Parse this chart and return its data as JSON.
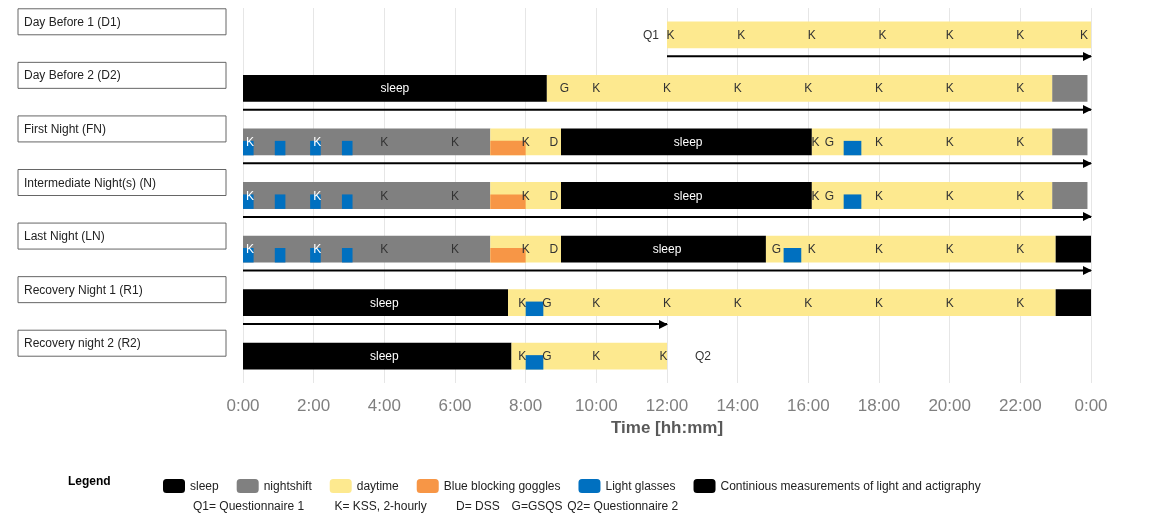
{
  "chart_data": {
    "type": "bar",
    "orientation": "horizontal",
    "xlabel": "Time [hh:mm]",
    "legend_title": "Legend",
    "legend": "bottom",
    "grid": "x",
    "categories": [
      "Day Before 1 (D1)",
      "Day Before 2 (D2)",
      "First Night (FN)",
      "Intermediate Night(s) (N)",
      "Last Night (LN)",
      "Recovery Night 1 (R1)",
      "Recovery night 2 (R2)"
    ],
    "xlim": [
      0,
      24
    ],
    "xticks": [
      {
        "value": 0,
        "label": "0:00"
      },
      {
        "value": 2,
        "label": "2:00"
      },
      {
        "value": 4,
        "label": "4:00"
      },
      {
        "value": 6,
        "label": "6:00"
      },
      {
        "value": 8,
        "label": "8:00"
      },
      {
        "value": 10,
        "label": "10:00"
      },
      {
        "value": 12,
        "label": "12:00"
      },
      {
        "value": 14,
        "label": "14:00"
      },
      {
        "value": 16,
        "label": "16:00"
      },
      {
        "value": 18,
        "label": "18:00"
      },
      {
        "value": 20,
        "label": "20:00"
      },
      {
        "value": 22,
        "label": "22:00"
      },
      {
        "value": 24,
        "label": "0:00"
      }
    ],
    "series": [
      {
        "name": "sleep",
        "color": "#000000",
        "base": [
          null,
          0,
          9,
          9,
          9,
          0,
          0
        ],
        "values": [
          null,
          8.6,
          7.1,
          7.1,
          5.8,
          7.5,
          7.6
        ]
      },
      {
        "color": "#808080",
        "base": [
          null,
          null,
          0,
          0,
          0,
          null,
          null
        ],
        "values": [
          null,
          null,
          7,
          7,
          7,
          null,
          null
        ]
      },
      {
        "name": "nightshift",
        "color": "#808080",
        "base": [
          null,
          22.9,
          22.9,
          22.9,
          null,
          null,
          null
        ],
        "values": [
          null,
          1,
          1,
          1,
          null,
          null,
          null
        ]
      },
      {
        "name": "daytime",
        "color": "#fde98f",
        "base": [
          12,
          8.6,
          7,
          7,
          7,
          7.5,
          7.6
        ],
        "values": [
          12,
          14.3,
          2,
          2,
          2,
          15.5,
          4.4
        ]
      },
      {
        "color": "#fde98f",
        "base": [
          null,
          null,
          16.1,
          16.1,
          14.8,
          null,
          null
        ],
        "values": [
          null,
          null,
          6.8,
          6.8,
          8.2,
          null,
          null
        ]
      },
      {
        "color": "#000000",
        "base": [
          null,
          null,
          null,
          null,
          23,
          23,
          null
        ],
        "values": [
          null,
          null,
          null,
          null,
          1,
          1,
          null
        ]
      },
      {
        "name": "Blue blocking goggles",
        "color": "#f79646",
        "base": [
          null,
          null,
          7,
          7,
          7,
          null,
          null
        ],
        "values": [
          null,
          null,
          1,
          1,
          1,
          null,
          null
        ]
      },
      {
        "name": "Light glasses",
        "color": "#0070c0",
        "base": [
          null,
          null,
          0,
          0,
          0,
          8,
          8
        ],
        "values": [
          null,
          null,
          0.3,
          0.3,
          0.3,
          0.5,
          0.5
        ]
      },
      {
        "color": "#0070c0",
        "base": [
          null,
          null,
          0.9,
          0.9,
          0.9,
          null,
          null
        ],
        "values": [
          null,
          null,
          0.3,
          0.3,
          0.3,
          null,
          null
        ]
      },
      {
        "color": "#0070c0",
        "base": [
          null,
          null,
          1.9,
          1.9,
          1.9,
          null,
          null
        ],
        "values": [
          null,
          null,
          0.3,
          0.3,
          0.3,
          null,
          null
        ]
      },
      {
        "color": "#0070c0",
        "base": [
          null,
          null,
          2.8,
          2.8,
          2.8,
          null,
          null
        ],
        "values": [
          null,
          null,
          0.3,
          0.3,
          0.3,
          null,
          null
        ]
      },
      {
        "color": "#0070c0",
        "base": [
          null,
          null,
          17,
          17,
          15.3,
          null,
          null
        ],
        "values": [
          null,
          null,
          0.5,
          0.5,
          0.5,
          null,
          null
        ]
      },
      {
        "name": "Continious measurements of light and actigraphy",
        "marker": "triangle",
        "color": "#000000",
        "base": [
          12,
          0,
          0,
          0,
          0,
          0,
          null
        ],
        "values": [
          12,
          24,
          24,
          24,
          24,
          12,
          null
        ]
      }
    ],
    "annotations": [
      {
        "text": "Q1",
        "x": 12,
        "y": "Day Before 1 (D1)"
      },
      {
        "text": "K",
        "x": 12.1,
        "y": "Day Before 1 (D1)"
      },
      {
        "text": "K",
        "x": 14.1,
        "y": "Day Before 1 (D1)"
      },
      {
        "text": "K",
        "x": 16.1,
        "y": "Day Before 1 (D1)"
      },
      {
        "text": "K",
        "x": 18.1,
        "y": "Day Before 1 (D1)"
      },
      {
        "text": "K",
        "x": 20,
        "y": "Day Before 1 (D1)"
      },
      {
        "text": "K",
        "x": 22,
        "y": "Day Before 1 (D1)"
      },
      {
        "text": "K",
        "x": 23.8,
        "y": "Day Before 1 (D1)"
      },
      {
        "text": "sleep",
        "x": 4.3,
        "y": "Day Before 2 (D2)"
      },
      {
        "text": "G",
        "x": 9.1,
        "y": "Day Before 2 (D2)"
      },
      {
        "text": "K",
        "x": 10,
        "y": "Day Before 2 (D2)"
      },
      {
        "text": "K",
        "x": 12,
        "y": "Day Before 2 (D2)"
      },
      {
        "text": "K",
        "x": 14,
        "y": "Day Before 2 (D2)"
      },
      {
        "text": "K",
        "x": 16,
        "y": "Day Before 2 (D2)"
      },
      {
        "text": "K",
        "x": 18,
        "y": "Day Before 2 (D2)"
      },
      {
        "text": "K",
        "x": 20,
        "y": "Day Before 2 (D2)"
      },
      {
        "text": "K",
        "x": 22,
        "y": "Day Before 2 (D2)"
      },
      {
        "text": "K",
        "x": 0.2,
        "y": "First Night (FN)"
      },
      {
        "text": "K",
        "x": 2.1,
        "y": "First Night (FN)"
      },
      {
        "text": "K",
        "x": 4,
        "y": "First Night (FN)"
      },
      {
        "text": "K",
        "x": 6,
        "y": "First Night (FN)"
      },
      {
        "text": "K",
        "x": 8,
        "y": "First Night (FN)"
      },
      {
        "text": "D",
        "x": 8.8,
        "y": "First Night (FN)"
      },
      {
        "text": "sleep",
        "x": 12.6,
        "y": "First Night (FN)"
      },
      {
        "text": "K",
        "x": 16.2,
        "y": "First Night (FN)"
      },
      {
        "text": "G",
        "x": 16.6,
        "y": "First Night (FN)"
      },
      {
        "text": "K",
        "x": 18,
        "y": "First Night (FN)"
      },
      {
        "text": "K",
        "x": 20,
        "y": "First Night (FN)"
      },
      {
        "text": "K",
        "x": 22,
        "y": "First Night (FN)"
      },
      {
        "text": "K",
        "x": 0.2,
        "y": "Intermediate Night(s) (N)"
      },
      {
        "text": "K",
        "x": 2.1,
        "y": "Intermediate Night(s) (N)"
      },
      {
        "text": "K",
        "x": 4,
        "y": "Intermediate Night(s) (N)"
      },
      {
        "text": "K",
        "x": 6,
        "y": "Intermediate Night(s) (N)"
      },
      {
        "text": "K",
        "x": 8,
        "y": "Intermediate Night(s) (N)"
      },
      {
        "text": "D",
        "x": 8.8,
        "y": "Intermediate Night(s) (N)"
      },
      {
        "text": "sleep",
        "x": 12.6,
        "y": "Intermediate Night(s) (N)"
      },
      {
        "text": "K",
        "x": 16.2,
        "y": "Intermediate Night(s) (N)"
      },
      {
        "text": "G",
        "x": 16.6,
        "y": "Intermediate Night(s) (N)"
      },
      {
        "text": "K",
        "x": 18,
        "y": "Intermediate Night(s) (N)"
      },
      {
        "text": "K",
        "x": 20,
        "y": "Intermediate Night(s) (N)"
      },
      {
        "text": "K",
        "x": 22,
        "y": "Intermediate Night(s) (N)"
      },
      {
        "text": "K",
        "x": 0.2,
        "y": "Last Night (LN)"
      },
      {
        "text": "K",
        "x": 2.1,
        "y": "Last Night (LN)"
      },
      {
        "text": "K",
        "x": 4,
        "y": "Last Night (LN)"
      },
      {
        "text": "K",
        "x": 6,
        "y": "Last Night (LN)"
      },
      {
        "text": "K",
        "x": 8,
        "y": "Last Night (LN)"
      },
      {
        "text": "D",
        "x": 8.8,
        "y": "Last Night (LN)"
      },
      {
        "text": "sleep",
        "x": 12,
        "y": "Last Night (LN)"
      },
      {
        "text": "G",
        "x": 15.1,
        "y": "Last Night (LN)"
      },
      {
        "text": "K",
        "x": 16.1,
        "y": "Last Night (LN)"
      },
      {
        "text": "K",
        "x": 18,
        "y": "Last Night (LN)"
      },
      {
        "text": "K",
        "x": 20,
        "y": "Last Night (LN)"
      },
      {
        "text": "K",
        "x": 22,
        "y": "Last Night (LN)"
      },
      {
        "text": "sleep",
        "x": 4,
        "y": "Recovery Night 1 (R1)"
      },
      {
        "text": "K",
        "x": 7.9,
        "y": "Recovery Night 1 (R1)"
      },
      {
        "text": "G",
        "x": 8.6,
        "y": "Recovery Night 1 (R1)"
      },
      {
        "text": "K",
        "x": 10,
        "y": "Recovery Night 1 (R1)"
      },
      {
        "text": "K",
        "x": 12,
        "y": "Recovery Night 1 (R1)"
      },
      {
        "text": "K",
        "x": 14,
        "y": "Recovery Night 1 (R1)"
      },
      {
        "text": "K",
        "x": 16,
        "y": "Recovery Night 1 (R1)"
      },
      {
        "text": "K",
        "x": 18,
        "y": "Recovery Night 1 (R1)"
      },
      {
        "text": "K",
        "x": 20,
        "y": "Recovery Night 1 (R1)"
      },
      {
        "text": "K",
        "x": 22,
        "y": "Recovery Night 1 (R1)"
      },
      {
        "text": "sleep",
        "x": 4,
        "y": "Recovery night 2 (R2)"
      },
      {
        "text": "K",
        "x": 7.9,
        "y": "Recovery night 2 (R2)"
      },
      {
        "text": "G",
        "x": 8.6,
        "y": "Recovery night 2 (R2)"
      },
      {
        "text": "K",
        "x": 10,
        "y": "Recovery night 2 (R2)"
      },
      {
        "text": "K",
        "x": 11.9,
        "y": "Recovery night 2 (R2)"
      },
      {
        "text": "Q2",
        "x": 12,
        "y": "Recovery night 2 (R2)"
      },
      "Q1= Questionnaire 1",
      "K= KSS, 2-hourly",
      "D= DSS",
      "G=GSQS",
      "Q2= Questionnaire 2"
    ]
  }
}
